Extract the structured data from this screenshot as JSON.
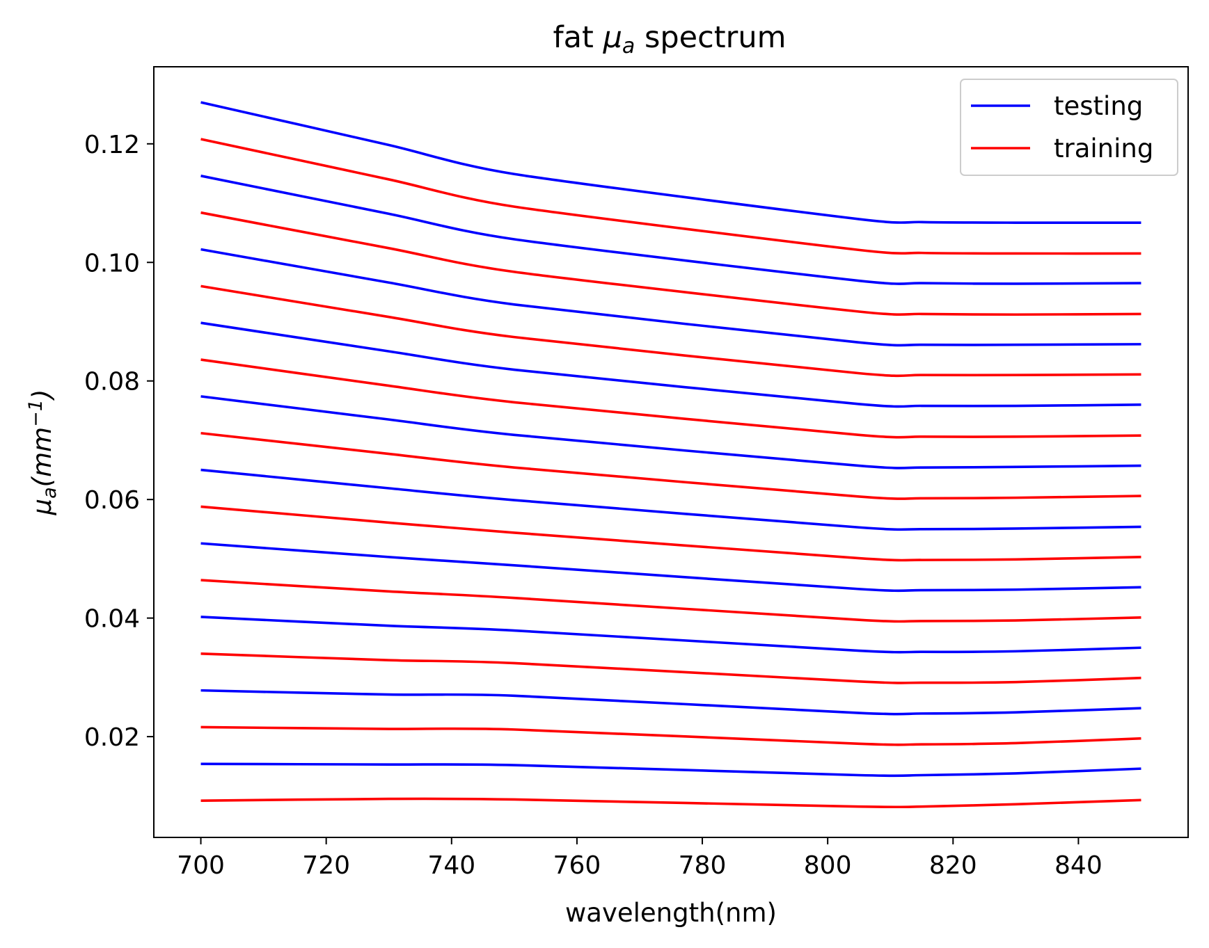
{
  "chart_data": {
    "type": "line",
    "title": "fat μa spectrum",
    "title_parts": {
      "prefix": "fat ",
      "symbol": "μ",
      "subscript": "a",
      "suffix": " spectrum"
    },
    "xlabel": "wavelength(nm)",
    "ylabel": "μa(mm−1)",
    "ylabel_parts": {
      "symbol": "μ",
      "subscript": "a",
      "open": "(mm",
      "superscript": "−1",
      "close": ")"
    },
    "xlim": [
      692.5,
      857.5
    ],
    "ylim": [
      0.003,
      0.133
    ],
    "xticks": [
      700,
      720,
      740,
      760,
      780,
      800,
      820,
      840
    ],
    "yticks": [
      0.02,
      0.04,
      0.06,
      0.08,
      0.1,
      0.12
    ],
    "ytick_labels": [
      "0.02",
      "0.04",
      "0.06",
      "0.08",
      "0.10",
      "0.12"
    ],
    "grid": false,
    "legend_position": "top-right",
    "legend": [
      {
        "label": "testing",
        "color": "#0000ff"
      },
      {
        "label": "training",
        "color": "#ff0000"
      }
    ],
    "x": [
      700,
      730,
      750,
      805,
      815,
      830,
      850
    ],
    "series": [
      {
        "group": "testing",
        "color": "#0000ff",
        "values": [
          0.127,
          0.1198,
          0.1149,
          0.1073,
          0.1068,
          0.1067,
          0.1067
        ]
      },
      {
        "group": "training",
        "color": "#ff0000",
        "values": [
          0.1208,
          0.114,
          0.1094,
          0.1021,
          0.1016,
          0.1015,
          0.1015
        ]
      },
      {
        "group": "testing",
        "color": "#0000ff",
        "values": [
          0.1146,
          0.1082,
          0.1039,
          0.0969,
          0.0965,
          0.0964,
          0.0965
        ]
      },
      {
        "group": "training",
        "color": "#ff0000",
        "values": [
          0.1084,
          0.1024,
          0.0984,
          0.0917,
          0.0913,
          0.0912,
          0.0913
        ]
      },
      {
        "group": "testing",
        "color": "#0000ff",
        "values": [
          0.1022,
          0.0966,
          0.0929,
          0.0865,
          0.0861,
          0.0861,
          0.0862
        ]
      },
      {
        "group": "training",
        "color": "#ff0000",
        "values": [
          0.096,
          0.0908,
          0.0874,
          0.0813,
          0.081,
          0.081,
          0.0811
        ]
      },
      {
        "group": "testing",
        "color": "#0000ff",
        "values": [
          0.0898,
          0.085,
          0.0819,
          0.0761,
          0.0758,
          0.0758,
          0.076
        ]
      },
      {
        "group": "training",
        "color": "#ff0000",
        "values": [
          0.0836,
          0.0792,
          0.0764,
          0.0709,
          0.0706,
          0.0706,
          0.0708
        ]
      },
      {
        "group": "testing",
        "color": "#0000ff",
        "values": [
          0.0774,
          0.0735,
          0.0709,
          0.0657,
          0.0654,
          0.0655,
          0.0657
        ]
      },
      {
        "group": "training",
        "color": "#ff0000",
        "values": [
          0.0712,
          0.0677,
          0.0654,
          0.0605,
          0.0602,
          0.0603,
          0.0606
        ]
      },
      {
        "group": "testing",
        "color": "#0000ff",
        "values": [
          0.065,
          0.0619,
          0.0599,
          0.0553,
          0.055,
          0.0551,
          0.0554
        ]
      },
      {
        "group": "training",
        "color": "#ff0000",
        "values": [
          0.0588,
          0.0561,
          0.0544,
          0.0501,
          0.0498,
          0.0499,
          0.0503
        ]
      },
      {
        "group": "testing",
        "color": "#0000ff",
        "values": [
          0.0526,
          0.0503,
          0.0489,
          0.0449,
          0.0447,
          0.0448,
          0.0452
        ]
      },
      {
        "group": "training",
        "color": "#ff0000",
        "values": [
          0.0464,
          0.0445,
          0.0434,
          0.0397,
          0.0395,
          0.0396,
          0.0401
        ]
      },
      {
        "group": "testing",
        "color": "#0000ff",
        "values": [
          0.0402,
          0.0387,
          0.0379,
          0.0345,
          0.0343,
          0.0344,
          0.035
        ]
      },
      {
        "group": "training",
        "color": "#ff0000",
        "values": [
          0.034,
          0.0329,
          0.0324,
          0.0293,
          0.0291,
          0.0292,
          0.0299
        ]
      },
      {
        "group": "testing",
        "color": "#0000ff",
        "values": [
          0.0278,
          0.0271,
          0.0269,
          0.024,
          0.0239,
          0.0241,
          0.0248
        ]
      },
      {
        "group": "training",
        "color": "#ff0000",
        "values": [
          0.0216,
          0.0213,
          0.0212,
          0.0188,
          0.0187,
          0.0189,
          0.0197
        ]
      },
      {
        "group": "testing",
        "color": "#0000ff",
        "values": [
          0.0154,
          0.0153,
          0.0152,
          0.0135,
          0.0135,
          0.0138,
          0.0146
        ]
      },
      {
        "group": "training",
        "color": "#ff0000",
        "values": [
          0.0092,
          0.0095,
          0.0094,
          0.0082,
          0.0082,
          0.0086,
          0.0093
        ]
      }
    ]
  }
}
